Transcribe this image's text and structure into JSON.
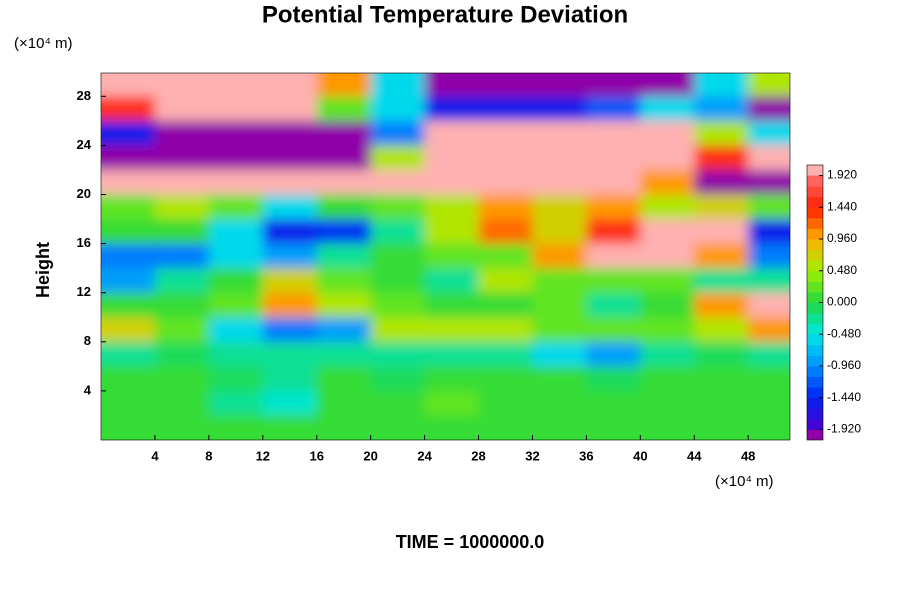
{
  "chart_data": {
    "type": "heatmap",
    "title": "Potential Temperature Deviation",
    "ylabel": "Height",
    "x_unit": "(×10⁴ m)",
    "y_unit": "(×10⁴ m)",
    "footer": "TIME = 1000000.0",
    "xlim": [
      0,
      51.1
    ],
    "ylim": [
      0,
      29.9
    ],
    "xticks": [
      4,
      8,
      12,
      16,
      20,
      24,
      28,
      32,
      36,
      40,
      44,
      48
    ],
    "yticks": [
      4,
      8,
      12,
      16,
      20,
      24,
      28
    ],
    "x": [
      2,
      6,
      10,
      14,
      18,
      22,
      26,
      30,
      34,
      38,
      42,
      46,
      50
    ],
    "y": [
      29,
      27,
      25,
      23,
      21,
      19,
      17,
      15,
      13,
      11,
      9,
      7,
      5,
      3,
      1
    ],
    "z": [
      [
        2.5,
        3,
        3,
        2.5,
        1.0,
        -0.5,
        -2.5,
        -3,
        -3,
        -3,
        -2.5,
        -0.5,
        0.5
      ],
      [
        1.5,
        2.5,
        2.5,
        2,
        0.3,
        -0.5,
        -1.5,
        -1.5,
        -1.5,
        -1.2,
        -0.5,
        -0.8,
        -2
      ],
      [
        -1.5,
        -2.5,
        -2.5,
        -2.5,
        -2,
        -1,
        2.2,
        2.5,
        2.5,
        2.5,
        2,
        0.5,
        -0.5
      ],
      [
        -2.5,
        -2.5,
        -2.5,
        -2.5,
        -2.5,
        0.5,
        2.3,
        2.5,
        2.5,
        2.5,
        2.3,
        1.5,
        2
      ],
      [
        2,
        2,
        2,
        2,
        2.5,
        2.5,
        2.5,
        2.5,
        2.5,
        2,
        1,
        -2,
        -2
      ],
      [
        0.2,
        0.5,
        0.3,
        -0.5,
        0,
        0.3,
        0.5,
        1,
        0.8,
        1,
        0.5,
        0.8,
        0.3
      ],
      [
        0,
        0,
        -0.5,
        -1.5,
        -1.3,
        -0.3,
        0.5,
        1.2,
        0.8,
        1.5,
        2.2,
        2,
        -1.5
      ],
      [
        -1,
        -1,
        -0.5,
        -0.8,
        -0.3,
        0,
        0.3,
        0.3,
        1,
        2.2,
        2,
        1,
        -1
      ],
      [
        -0.8,
        -0.2,
        0,
        0.8,
        0.2,
        0,
        -0.2,
        0.5,
        0.3,
        0.2,
        0.2,
        -0.2,
        -0.3
      ],
      [
        0,
        0,
        0.2,
        1,
        0.5,
        0.2,
        0,
        0,
        0.2,
        -0.2,
        0,
        1,
        2
      ],
      [
        0.8,
        0.3,
        -0.5,
        -1,
        -0.8,
        0.5,
        0.5,
        0.5,
        0.3,
        0.3,
        0.3,
        0.5,
        1
      ],
      [
        -0.2,
        -0.1,
        -0.3,
        -0.2,
        -0.3,
        -0.3,
        -0.3,
        -0.3,
        -0.5,
        -0.8,
        -0.2,
        -0.1,
        -0.2
      ],
      [
        0,
        0.1,
        -0.1,
        -0.3,
        0,
        -0.1,
        0.1,
        0,
        0.1,
        -0.1,
        0,
        0,
        0
      ],
      [
        0.1,
        0,
        -0.2,
        -0.4,
        0,
        0.1,
        0.2,
        0.1,
        0,
        0,
        0.1,
        0,
        0
      ],
      [
        0.1,
        0.1,
        0,
        0,
        0.1,
        0.1,
        0,
        0,
        0.1,
        0,
        0,
        0,
        0.1
      ]
    ],
    "contour_interval": 0.16,
    "colorbar_ticks": [
      {
        "value": -1.92,
        "label": "-1.920"
      },
      {
        "value": -1.44,
        "label": "-1.440"
      },
      {
        "value": -0.96,
        "label": "-0.960"
      },
      {
        "value": -0.48,
        "label": "-0.480"
      },
      {
        "value": 0,
        "label": "0.000"
      },
      {
        "value": 0.48,
        "label": "0.480"
      },
      {
        "value": 0.96,
        "label": "0.960"
      },
      {
        "value": 1.44,
        "label": "1.440"
      },
      {
        "value": 1.92,
        "label": "1.920"
      }
    ],
    "colors": [
      "#5000d0",
      "#0020f0",
      "#0090ff",
      "#00e8e8",
      "#20d840",
      "#a0f000",
      "#ffb000",
      "#ff2000",
      "#ff7070"
    ],
    "under_color": "#9000a8",
    "over_color": "#ffb0b0"
  }
}
